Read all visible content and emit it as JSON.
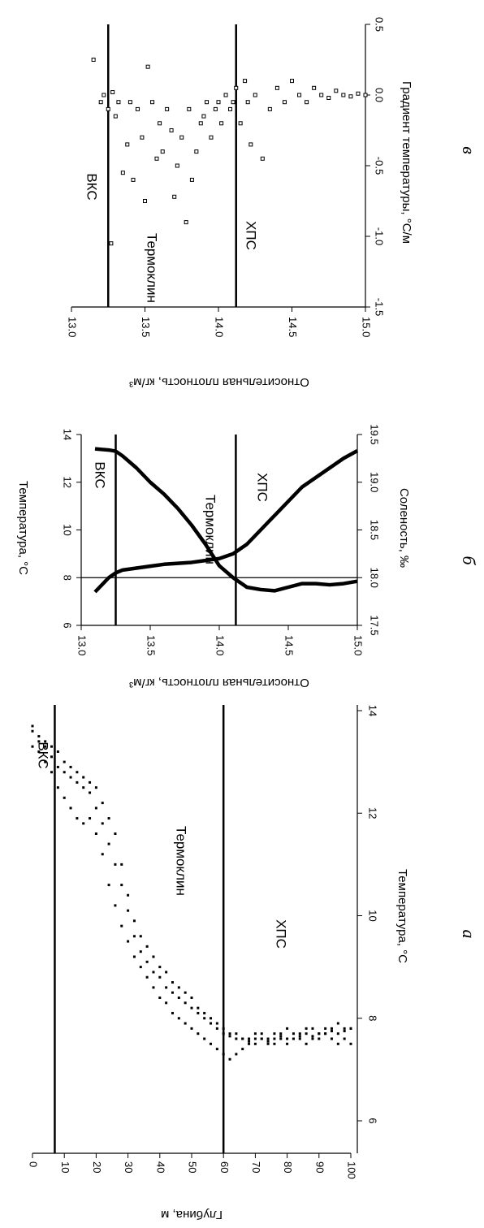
{
  "chart_data": [
    {
      "type": "scatter",
      "panel_label": "а",
      "xlabel": "Глубина, м",
      "ylabel": "Температура, °С",
      "x": [
        0,
        2,
        4,
        6,
        8,
        10,
        12,
        14,
        16,
        18,
        20,
        22,
        24,
        26,
        28,
        30,
        32,
        34,
        36,
        38,
        40,
        42,
        44,
        46,
        48,
        50,
        52,
        54,
        56,
        58,
        60,
        62,
        64,
        66,
        68,
        70,
        72,
        74,
        76,
        78,
        80,
        82,
        84,
        86,
        88,
        90,
        92,
        94,
        96,
        98,
        100
      ],
      "profiles": [
        [
          13.6,
          13.4,
          13.3,
          13.1,
          12.9,
          12.8,
          12.7,
          12.6,
          12.5,
          12.4,
          12.1,
          11.8,
          11.4,
          11.0,
          10.6,
          10.1,
          9.6,
          9.3,
          9.1,
          8.9,
          8.8,
          8.6,
          8.5,
          8.4,
          8.3,
          8.2,
          8.1,
          8.0,
          7.9,
          7.8,
          7.7,
          7.65,
          7.6,
          7.6,
          7.55,
          7.6,
          7.6,
          7.55,
          7.6,
          7.65,
          7.6,
          7.6,
          7.65,
          7.7,
          7.65,
          7.7,
          7.7,
          7.75,
          7.7,
          7.75,
          7.8
        ],
        [
          13.3,
          13.2,
          13.0,
          12.8,
          12.5,
          12.3,
          12.1,
          11.9,
          11.8,
          11.9,
          11.6,
          11.2,
          10.6,
          10.2,
          9.8,
          9.5,
          9.2,
          9.0,
          8.8,
          8.6,
          8.4,
          8.3,
          8.1,
          8.0,
          7.9,
          7.8,
          7.7,
          7.6,
          7.5,
          7.4,
          7.3,
          7.2,
          7.3,
          7.4,
          7.5,
          7.5,
          7.6,
          7.5,
          7.5,
          7.6,
          7.5,
          7.6,
          7.6,
          7.5,
          7.6,
          7.6,
          7.7,
          7.6,
          7.5,
          7.6,
          7.5
        ],
        [
          13.7,
          13.5,
          13.4,
          13.3,
          13.2,
          13.0,
          12.9,
          12.8,
          12.7,
          12.6,
          12.5,
          12.2,
          11.9,
          11.6,
          11.0,
          10.4,
          9.9,
          9.6,
          9.4,
          9.2,
          9.0,
          8.9,
          8.7,
          8.6,
          8.5,
          8.4,
          8.2,
          8.1,
          8.0,
          7.9,
          7.8,
          7.7,
          7.7,
          7.6,
          7.6,
          7.7,
          7.7,
          7.6,
          7.7,
          7.7,
          7.8,
          7.7,
          7.7,
          7.8,
          7.8,
          7.7,
          7.8,
          7.8,
          7.9,
          7.8,
          7.8
        ]
      ],
      "color": "#000000",
      "xlim": [
        0,
        100
      ],
      "xticks": [
        0,
        10,
        20,
        30,
        40,
        50,
        60,
        70,
        80,
        90,
        100
      ],
      "ylim": [
        6,
        14
      ],
      "yticks": [
        6,
        8,
        10,
        12,
        14
      ],
      "vlines": [
        7,
        60
      ],
      "annotations": [
        "ВКС",
        "Термоклин",
        "ХПС"
      ]
    },
    {
      "type": "line",
      "panel_label": "б",
      "xlabel": "Относительная плотность, кг/м³",
      "ylabel": "Температура, °С",
      "y2label": "Соленость, ‰",
      "x": [
        13.1,
        13.2,
        13.25,
        13.3,
        13.4,
        13.5,
        13.6,
        13.7,
        13.8,
        13.9,
        14.0,
        14.1,
        14.2,
        14.3,
        14.4,
        14.5,
        14.6,
        14.7,
        14.8,
        14.9,
        15.0
      ],
      "series": [
        {
          "color": "#000000",
          "values": [
            13.4,
            13.35,
            13.3,
            13.1,
            12.6,
            12.0,
            11.5,
            10.9,
            10.2,
            9.4,
            8.5,
            8.0,
            7.6,
            7.5,
            7.45,
            7.6,
            7.75,
            7.75,
            7.7,
            7.75,
            7.85
          ]
        },
        {
          "color": "#000000",
          "axis": "y2",
          "values": [
            17.85,
            18.0,
            18.05,
            18.08,
            18.1,
            18.12,
            18.14,
            18.15,
            18.16,
            18.18,
            18.2,
            18.25,
            18.35,
            18.5,
            18.65,
            18.8,
            18.95,
            19.05,
            19.15,
            19.25,
            19.33
          ]
        }
      ],
      "xlim": [
        13,
        15
      ],
      "xticks": [
        {
          "value": 13,
          "label": "13.0"
        },
        13.5,
        {
          "value": 14,
          "label": "14.0"
        },
        14.5,
        {
          "value": 15,
          "label": "15.0"
        }
      ],
      "ylim": [
        6,
        14
      ],
      "yticks": [
        6,
        8,
        10,
        12,
        14
      ],
      "y2lim": [
        17.5,
        19.5
      ],
      "y2ticks": [
        17.5,
        {
          "value": 18,
          "label": "18.0"
        },
        18.5,
        {
          "value": 19,
          "label": "19.0"
        },
        19.5
      ],
      "hline": 8,
      "vlines": [
        13.25,
        14.12
      ],
      "annotations": [
        "ВКС",
        "Термоклин",
        "ХПС"
      ]
    },
    {
      "type": "scatter",
      "panel_label": "в",
      "xlabel": "Относительная плотность, кг/м³",
      "ylabel": "Градиент температуры, °С/м",
      "x": [
        13.15,
        13.2,
        13.22,
        13.25,
        13.27,
        13.28,
        13.3,
        13.32,
        13.35,
        13.38,
        13.4,
        13.42,
        13.45,
        13.48,
        13.5,
        13.52,
        13.55,
        13.58,
        13.6,
        13.62,
        13.65,
        13.68,
        13.7,
        13.72,
        13.75,
        13.78,
        13.8,
        13.82,
        13.85,
        13.88,
        13.9,
        13.92,
        13.95,
        13.98,
        14.0,
        14.02,
        14.05,
        14.08,
        14.1,
        14.12,
        14.15,
        14.18,
        14.2,
        14.22,
        14.25,
        14.3,
        14.35,
        14.4,
        14.45,
        14.5,
        14.55,
        14.6,
        14.65,
        14.7,
        14.75,
        14.8,
        14.85,
        14.9,
        14.95,
        15.0
      ],
      "values": [
        0.25,
        -0.05,
        0.0,
        -0.1,
        -1.05,
        0.02,
        -0.15,
        -0.05,
        -0.55,
        -0.35,
        -0.05,
        -0.6,
        -0.1,
        -0.3,
        -0.75,
        0.2,
        -0.05,
        -0.45,
        -0.2,
        -0.4,
        -0.1,
        -0.25,
        -0.72,
        -0.5,
        -0.3,
        -0.9,
        -0.1,
        -0.6,
        -0.4,
        -0.2,
        -0.15,
        -0.05,
        -0.3,
        -0.1,
        -0.05,
        -0.2,
        0.0,
        -0.1,
        -0.05,
        0.05,
        -0.2,
        0.1,
        -0.05,
        -0.35,
        0.0,
        -0.45,
        -0.1,
        0.05,
        -0.05,
        0.1,
        0.0,
        -0.05,
        0.05,
        0.0,
        -0.02,
        0.03,
        0.0,
        -0.01,
        0.01,
        0.0
      ],
      "color": "#000000",
      "xlim": [
        13,
        15
      ],
      "xticks": [
        {
          "value": 13,
          "label": "13.0"
        },
        13.5,
        {
          "value": 14,
          "label": "14.0"
        },
        14.5,
        {
          "value": 15,
          "label": "15.0"
        }
      ],
      "ylim": [
        -1.5,
        0.5
      ],
      "yticks": [
        -1.5,
        {
          "value": -1,
          "label": "-1.0"
        },
        -0.5,
        {
          "value": 0,
          "label": "0.0"
        },
        0.5
      ],
      "vlines": [
        13.25,
        14.12
      ],
      "annotations": [
        "ВКС",
        "Термоклин",
        "ХПС"
      ]
    }
  ]
}
